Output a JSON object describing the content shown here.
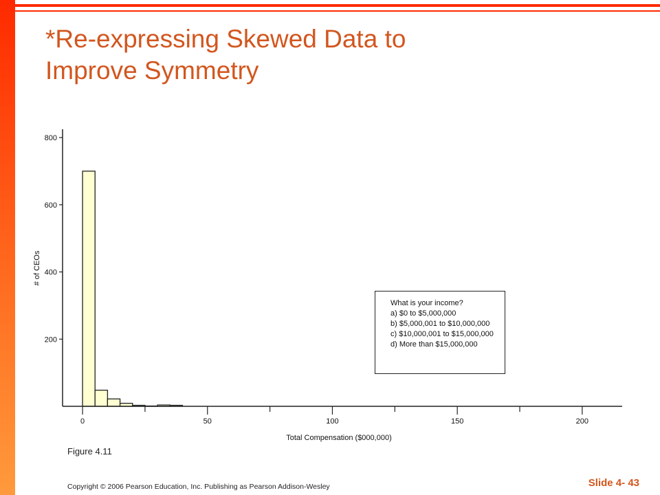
{
  "slide": {
    "title_line1": "*Re-expressing Skewed Data to",
    "title_line2": "Improve Symmetry",
    "figure_label": "Figure 4.11",
    "copyright": "Copyright © 2006 Pearson Education, Inc. Publishing as Pearson Addison-Wesley",
    "slide_number": "Slide 4- 43",
    "accent_color": "#d2561e",
    "bar_gradient_top": "#ff2a00",
    "bar_gradient_bottom": "#ff9a3c"
  },
  "infobox": {
    "question": "What is your income?",
    "options": [
      "a)  $0 to $5,000,000",
      "b)  $5,000,001 to $10,000,000",
      "c)  $10,000,001 to $15,000,000",
      "d)  More than $15,000,000"
    ]
  },
  "chart_data": {
    "type": "bar",
    "xlabel": "Total Compensation ($000,000)",
    "ylabel": "# of CEOs",
    "xlim": [
      -8,
      216
    ],
    "ylim": [
      0,
      800
    ],
    "xticks": [
      0,
      50,
      100,
      150,
      200
    ],
    "minor_xticks": [
      25,
      75,
      125,
      175
    ],
    "yticks": [
      200,
      400,
      600,
      800
    ],
    "bin_width": 5,
    "bins": [
      {
        "start": 0,
        "end": 5,
        "count": 700
      },
      {
        "start": 5,
        "end": 10,
        "count": 48
      },
      {
        "start": 10,
        "end": 15,
        "count": 22
      },
      {
        "start": 15,
        "end": 20,
        "count": 9
      },
      {
        "start": 20,
        "end": 25,
        "count": 3
      },
      {
        "start": 25,
        "end": 30,
        "count": 1
      },
      {
        "start": 30,
        "end": 35,
        "count": 4
      },
      {
        "start": 35,
        "end": 40,
        "count": 3
      }
    ],
    "bar_color": "#ffffd2",
    "grid": false
  }
}
